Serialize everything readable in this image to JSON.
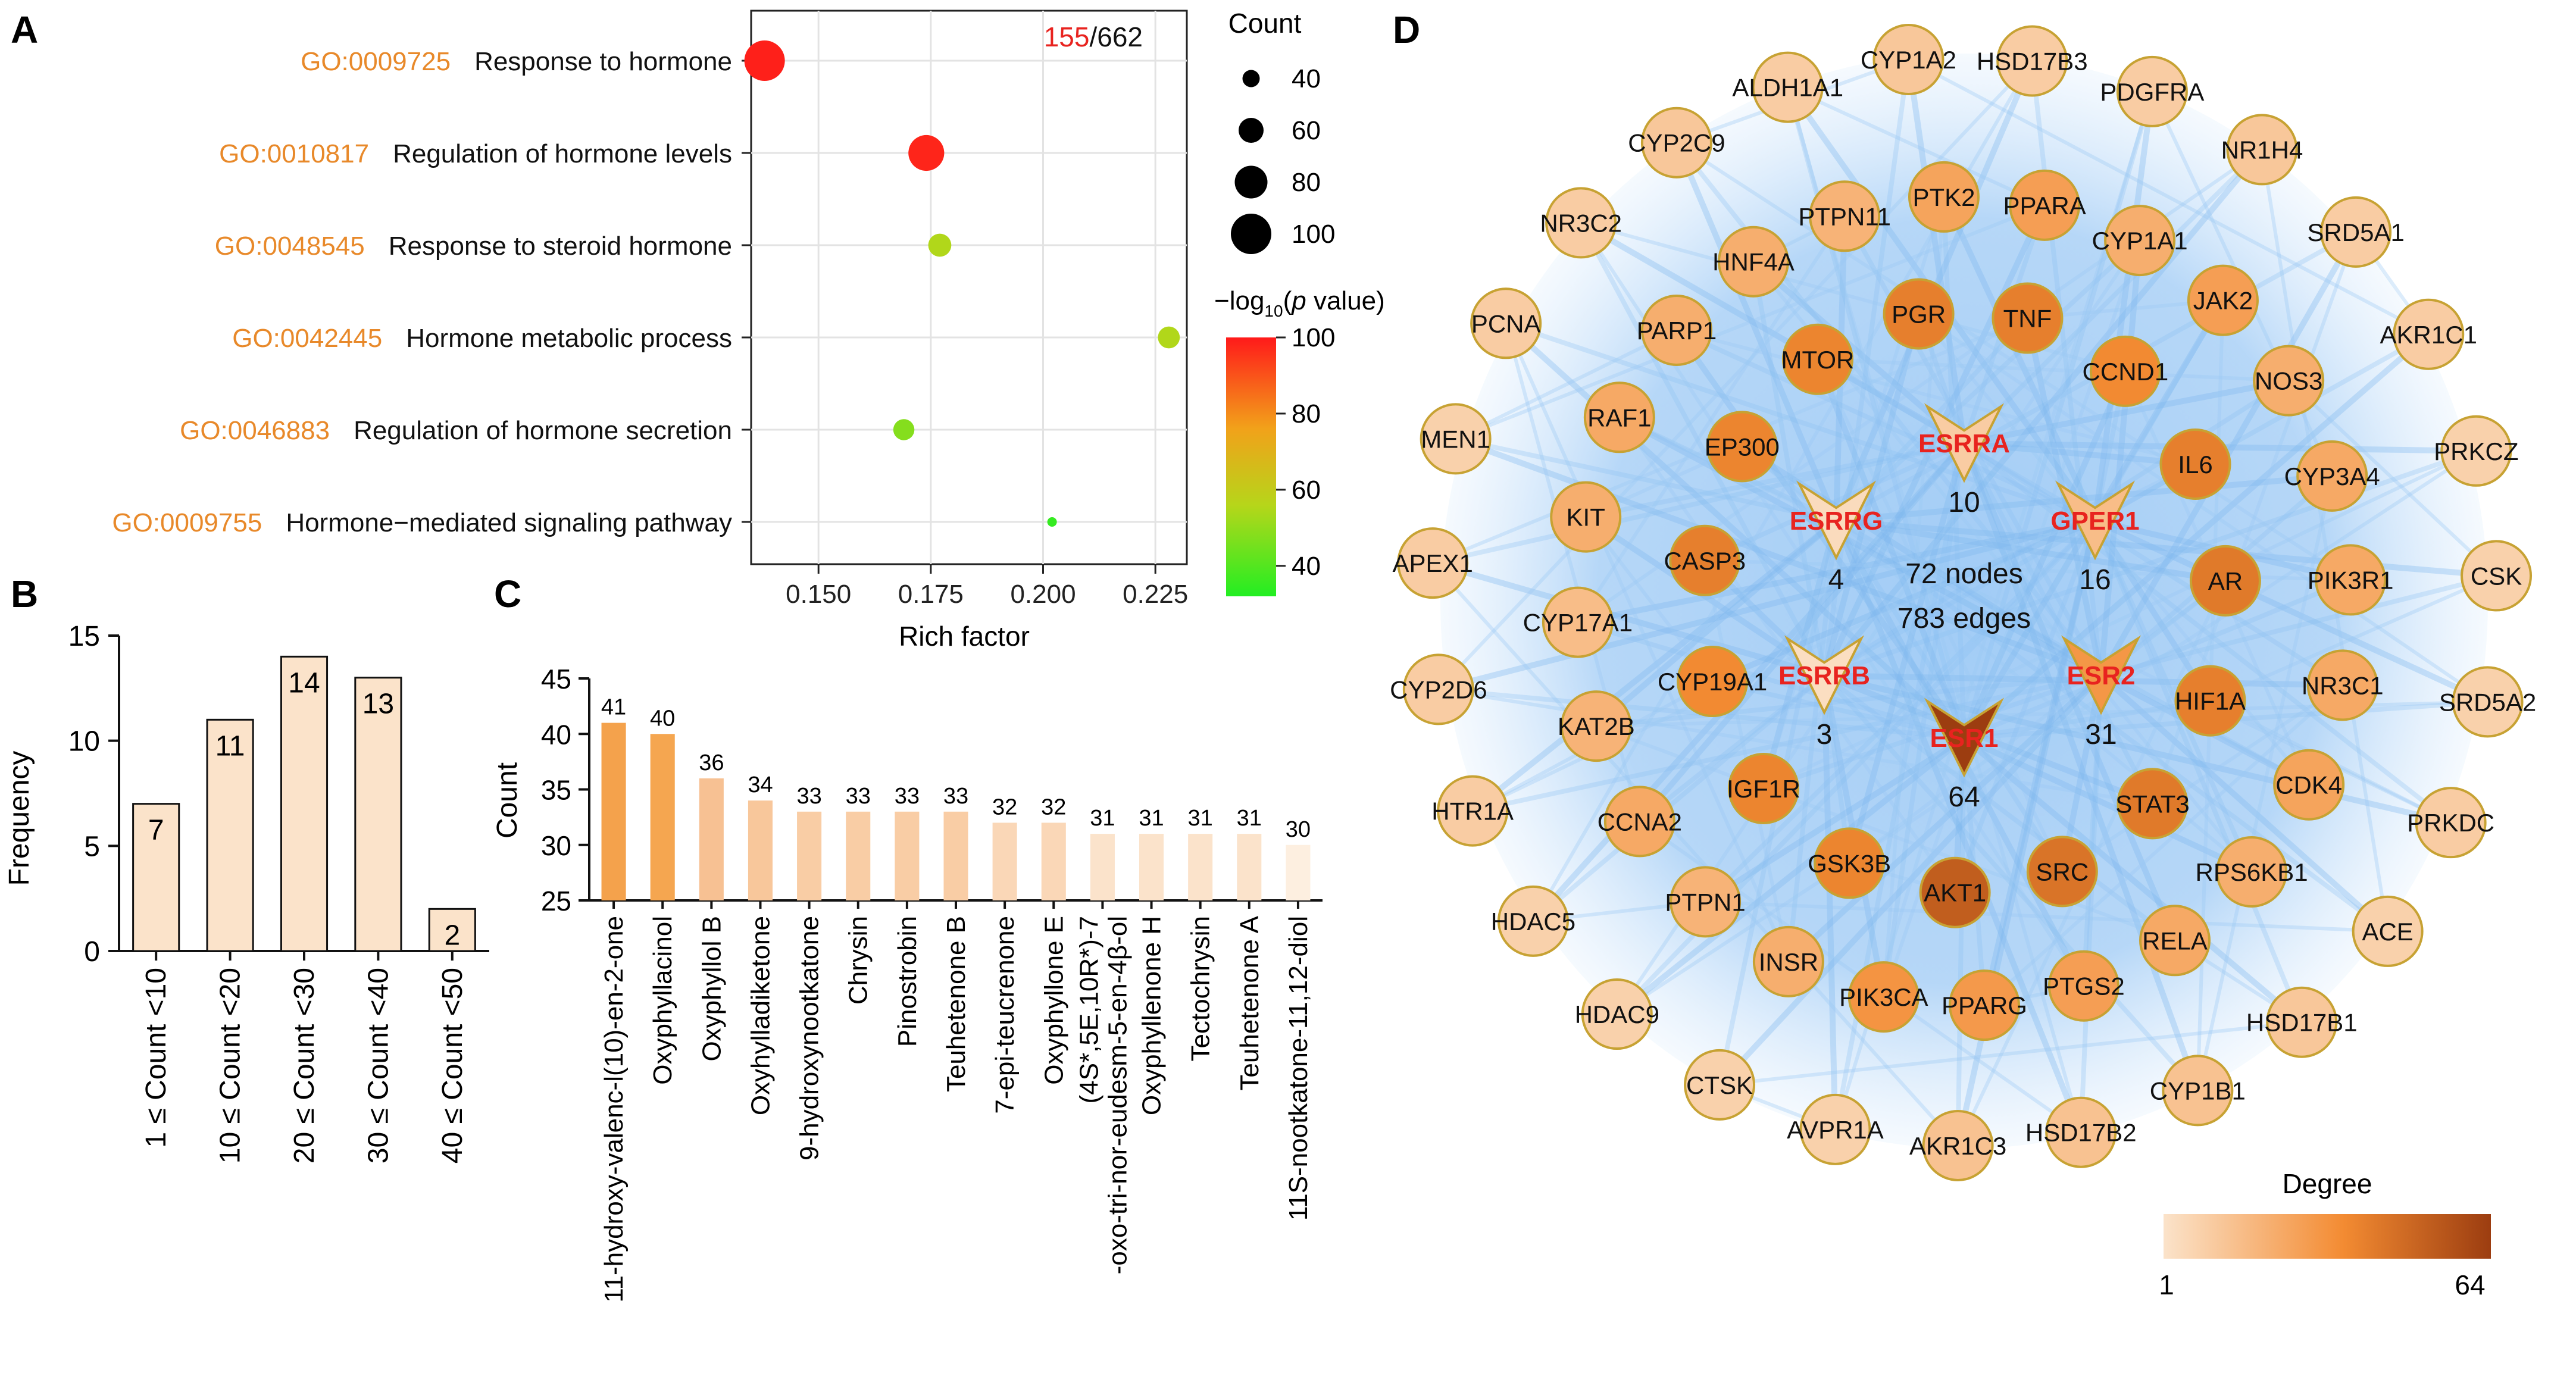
{
  "panel_labels": [
    "A",
    "B",
    "C",
    "D"
  ],
  "chart_data": [
    {
      "panel": "A",
      "type": "scatter",
      "xlabel": "Rich factor",
      "xlim": [
        0.135,
        0.232
      ],
      "xticks": [
        "0.150",
        "0.175",
        "0.200",
        "0.225"
      ],
      "xtick_values": [
        0.15,
        0.175,
        0.2,
        0.225
      ],
      "corner_note_highlight": "155",
      "corner_note_rest": "/662",
      "size_legend_title": "Count",
      "size_legend_values": [
        40,
        60,
        80,
        100
      ],
      "color_legend_title_prefix": "−log",
      "color_legend_title_sub": "10",
      "color_legend_title_open": "(",
      "color_legend_title_p": "p",
      "color_legend_title_suffix": " value)",
      "color_legend_ticks": [
        100,
        80,
        60,
        40
      ],
      "color_range": [
        32,
        100
      ],
      "terms": [
        {
          "id": "GO:0009725",
          "name": "Response to hormone",
          "rich": 0.138,
          "count": 100,
          "log_p": 99
        },
        {
          "id": "GO:0010817",
          "name": "Regulation of hormone levels",
          "rich": 0.174,
          "count": 88,
          "log_p": 98
        },
        {
          "id": "GO:0048545",
          "name": "Response to steroid hormone",
          "rich": 0.177,
          "count": 55,
          "log_p": 55
        },
        {
          "id": "GO:0042445",
          "name": "Hormone metabolic process",
          "rich": 0.228,
          "count": 52,
          "log_p": 55
        },
        {
          "id": "GO:0046883",
          "name": "Regulation of hormone secretion",
          "rich": 0.169,
          "count": 50,
          "log_p": 48
        },
        {
          "id": "GO:0009755",
          "name": "Hormone−mediated signaling pathway",
          "rich": 0.202,
          "count": 20,
          "log_p": 35
        }
      ]
    },
    {
      "panel": "B",
      "type": "bar",
      "ylabel": "Frequency",
      "ylim": [
        0,
        15
      ],
      "yticks": [
        "0",
        "5",
        "10",
        "15"
      ],
      "ytick_values": [
        0,
        5,
        10,
        15
      ],
      "categories": [
        "1 ≤ Count <10",
        "10 ≤ Count <20",
        "20 ≤ Count <30",
        "30 ≤ Count <40",
        "40 ≤ Count <50"
      ],
      "values": [
        7,
        11,
        14,
        13,
        2
      ],
      "value_labels": [
        "7",
        "11",
        "14",
        "13",
        "2"
      ]
    },
    {
      "panel": "C",
      "type": "bar",
      "ylabel": "Count",
      "ylim": [
        25,
        45
      ],
      "yticks": [
        "25",
        "30",
        "35",
        "40",
        "45"
      ],
      "ytick_values": [
        25,
        30,
        35,
        40,
        45
      ],
      "categories": [
        "11-hydroxy-valenc-l(10)-en-2-one",
        "Oxyphyllacinol",
        "Oxyphyllol B",
        "Oxyhylladiketone",
        "9-hydroxynootkatone",
        "Chrysin",
        "Pinostrobin",
        "Teuhetenone B",
        "7-epi-teucrenone",
        "Oxyphyllone E",
        "(4S*,5E,10R*)-7 -oxo-tri-nor-eudesm-5-en-4β-ol",
        "Oxyphyllenone H",
        "Tectochrysin",
        "Teuhetenone A",
        "11S-nootkatone-11,12-diol"
      ],
      "values": [
        41,
        40,
        36,
        34,
        33,
        33,
        33,
        33,
        32,
        32,
        31,
        31,
        31,
        31,
        30
      ],
      "value_labels": [
        "41",
        "40",
        "36",
        "34",
        "33",
        "33",
        "33",
        "33",
        "32",
        "32",
        "31",
        "31",
        "31",
        "31",
        "30"
      ]
    }
  ],
  "network": {
    "summary_nodes": "72 nodes",
    "summary_edges": "783 edges",
    "legend_title": "Degree",
    "legend_min": "1",
    "legend_max": "64",
    "degree_range": [
      1,
      64
    ],
    "center_targets": [
      {
        "name": "ESRRA",
        "degree": 10,
        "degree_label": "10"
      },
      {
        "name": "ESRRG",
        "degree": 4,
        "degree_label": "4"
      },
      {
        "name": "GPER1",
        "degree": 16,
        "degree_label": "16"
      },
      {
        "name": "ESRRB",
        "degree": 3,
        "degree_label": "3"
      },
      {
        "name": "ESR2",
        "degree": 31,
        "degree_label": "31"
      },
      {
        "name": "ESR1",
        "degree": 64,
        "degree_label": "64"
      }
    ],
    "inner_ring": [
      {
        "name": "PGR",
        "degree": 40
      },
      {
        "name": "TNF",
        "degree": 40
      },
      {
        "name": "CCND1",
        "degree": 36
      },
      {
        "name": "IL6",
        "degree": 40
      },
      {
        "name": "AR",
        "degree": 42
      },
      {
        "name": "HIF1A",
        "degree": 40
      },
      {
        "name": "STAT3",
        "degree": 42
      },
      {
        "name": "SRC",
        "degree": 44
      },
      {
        "name": "AKT1",
        "degree": 52
      },
      {
        "name": "GSK3B",
        "degree": 38
      },
      {
        "name": "IGF1R",
        "degree": 38
      },
      {
        "name": "CYP19A1",
        "degree": 36
      },
      {
        "name": "CASP3",
        "degree": 40
      },
      {
        "name": "EP300",
        "degree": 38
      },
      {
        "name": "MTOR",
        "degree": 38
      }
    ],
    "middle_ring": [
      {
        "name": "PPARA",
        "degree": 28
      },
      {
        "name": "CYP1A1",
        "degree": 22
      },
      {
        "name": "JAK2",
        "degree": 28
      },
      {
        "name": "NOS3",
        "degree": 22
      },
      {
        "name": "CYP3A4",
        "degree": 24
      },
      {
        "name": "PIK3R1",
        "degree": 24
      },
      {
        "name": "NR3C1",
        "degree": 24
      },
      {
        "name": "CDK4",
        "degree": 26
      },
      {
        "name": "RPS6KB1",
        "degree": 22
      },
      {
        "name": "RELA",
        "degree": 24
      },
      {
        "name": "PTGS2",
        "degree": 28
      },
      {
        "name": "PPARG",
        "degree": 30
      },
      {
        "name": "PIK3CA",
        "degree": 32
      },
      {
        "name": "INSR",
        "degree": 22
      },
      {
        "name": "PTPN1",
        "degree": 20
      },
      {
        "name": "CCNA2",
        "degree": 24
      },
      {
        "name": "KAT2B",
        "degree": 20
      },
      {
        "name": "CYP17A1",
        "degree": 16
      },
      {
        "name": "KIT",
        "degree": 22
      },
      {
        "name": "RAF1",
        "degree": 24
      },
      {
        "name": "PARP1",
        "degree": 22
      },
      {
        "name": "HNF4A",
        "degree": 22
      },
      {
        "name": "PTPN11",
        "degree": 20
      },
      {
        "name": "PTK2",
        "degree": 26
      }
    ],
    "outer_ring": [
      {
        "name": "CYP1A2",
        "degree": 12
      },
      {
        "name": "HSD17B3",
        "degree": 10
      },
      {
        "name": "PDGFRA",
        "degree": 10
      },
      {
        "name": "NR1H4",
        "degree": 12
      },
      {
        "name": "SRD5A1",
        "degree": 10
      },
      {
        "name": "AKR1C1",
        "degree": 10
      },
      {
        "name": "PRKCZ",
        "degree": 8
      },
      {
        "name": "CSK",
        "degree": 8
      },
      {
        "name": "SRD5A2",
        "degree": 8
      },
      {
        "name": "PRKDC",
        "degree": 10
      },
      {
        "name": "ACE",
        "degree": 8
      },
      {
        "name": "HSD17B1",
        "degree": 12
      },
      {
        "name": "CYP1B1",
        "degree": 14
      },
      {
        "name": "HSD17B2",
        "degree": 14
      },
      {
        "name": "AKR1C3",
        "degree": 14
      },
      {
        "name": "AVPR1A",
        "degree": 8
      },
      {
        "name": "CTSK",
        "degree": 8
      },
      {
        "name": "HDAC9",
        "degree": 8
      },
      {
        "name": "HDAC5",
        "degree": 8
      },
      {
        "name": "HTR1A",
        "degree": 10
      },
      {
        "name": "CYP2D6",
        "degree": 10
      },
      {
        "name": "APEX1",
        "degree": 10
      },
      {
        "name": "MEN1",
        "degree": 8
      },
      {
        "name": "PCNA",
        "degree": 10
      },
      {
        "name": "NR3C2",
        "degree": 10
      },
      {
        "name": "CYP2C9",
        "degree": 12
      },
      {
        "name": "ALDH1A1",
        "degree": 10
      }
    ]
  }
}
